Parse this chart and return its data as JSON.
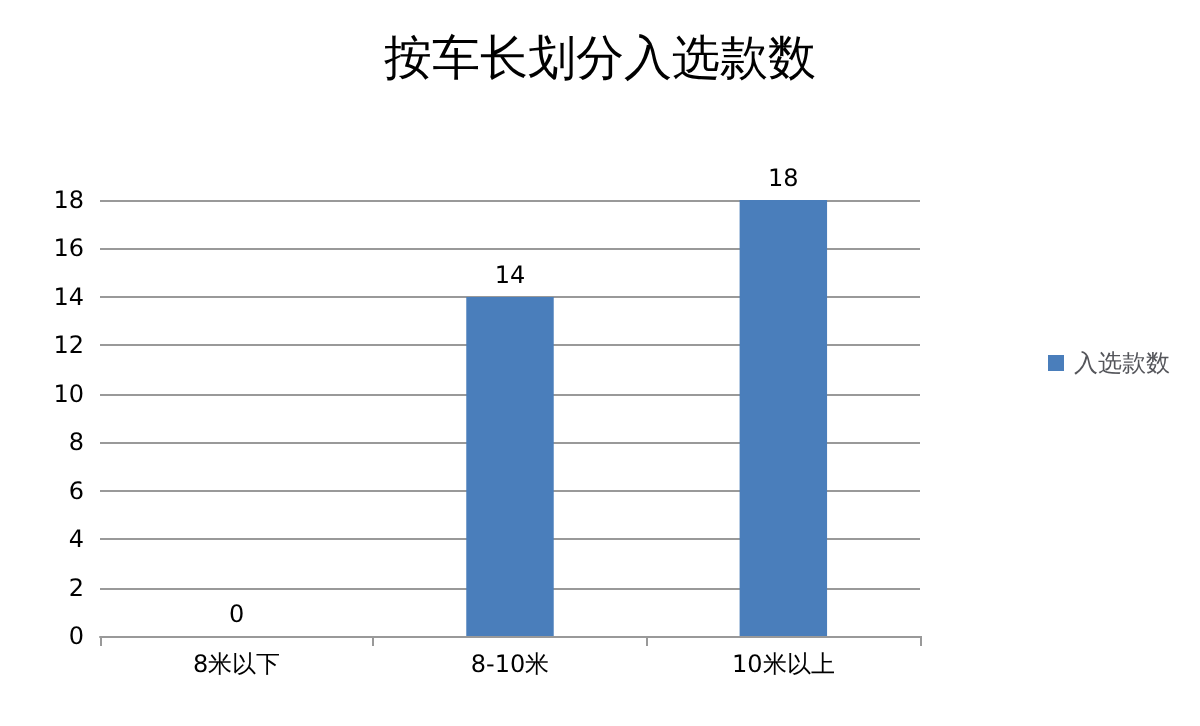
{
  "chart_data": {
    "type": "bar",
    "title": "按车长划分入选款数",
    "categories": [
      "8米以下",
      "8-10米",
      "10米以上"
    ],
    "series": [
      {
        "name": "入选款数",
        "color": "#4a7ebb",
        "values": [
          0,
          14,
          18
        ]
      }
    ],
    "ylim": [
      0,
      18
    ],
    "yticks": [
      0,
      2,
      4,
      6,
      8,
      10,
      12,
      14,
      16,
      18
    ],
    "grid": "y",
    "legend": "right",
    "data_labels": true
  }
}
